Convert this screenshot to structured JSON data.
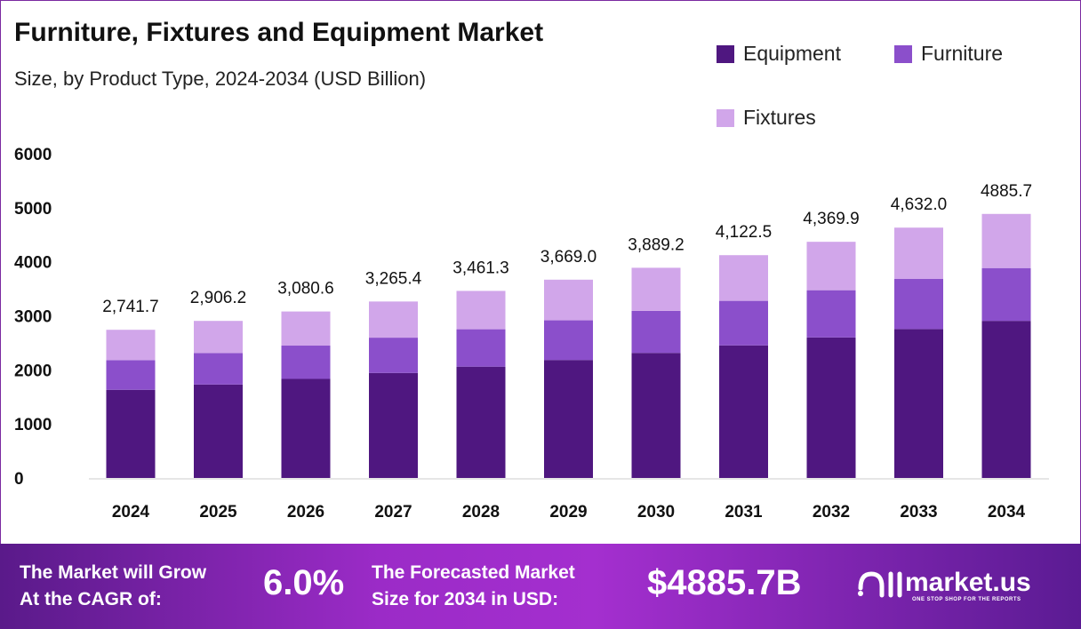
{
  "title": "Furniture, Fixtures and Equipment Market",
  "subtitle": "Size, by Product Type, 2024-2034 (USD Billion)",
  "colors": {
    "Equipment": "#4f1780",
    "Furniture": "#8b4fcb",
    "Fixtures": "#d1a6ea"
  },
  "chart_data": {
    "type": "bar",
    "stacked": true,
    "categories": [
      "2024",
      "2025",
      "2026",
      "2027",
      "2028",
      "2029",
      "2030",
      "2031",
      "2032",
      "2033",
      "2034"
    ],
    "series": [
      {
        "name": "Equipment",
        "values": [
          1631.3,
          1729.2,
          1833.0,
          1942.9,
          2059.5,
          2183.1,
          2314.1,
          2452.9,
          2600.1,
          2756.0,
          2907.0
        ]
      },
      {
        "name": "Furniture",
        "values": [
          548.3,
          581.2,
          616.1,
          653.1,
          692.3,
          733.8,
          777.8,
          824.5,
          874.0,
          926.4,
          977.1
        ]
      },
      {
        "name": "Fixtures",
        "values": [
          562.1,
          595.8,
          631.5,
          669.4,
          709.5,
          752.1,
          797.3,
          845.1,
          895.8,
          949.6,
          1001.6
        ]
      }
    ],
    "totals_labels": [
      "2,741.7",
      "2,906.2",
      "3,080.6",
      "3,265.4",
      "3,461.3",
      "3,669.0",
      "3,889.2",
      "4,122.5",
      "4,369.9",
      "4,632.0",
      "4885.7"
    ],
    "ylim": [
      0,
      6000
    ],
    "yticks": [
      "0",
      "1000",
      "2000",
      "3000",
      "4000",
      "5000",
      "6000"
    ],
    "grid": false,
    "legend": "top-right"
  },
  "footer": {
    "cagr_text_1": "The Market will Grow",
    "cagr_text_2": "At the CAGR of:",
    "cagr": "6.0%",
    "forecast_text_1": "The Forecasted Market",
    "forecast_text_2": "Size for 2034 in USD:",
    "forecast": "$4885.7B",
    "brand": "market.us",
    "tagline": "ONE STOP SHOP FOR THE REPORTS"
  }
}
